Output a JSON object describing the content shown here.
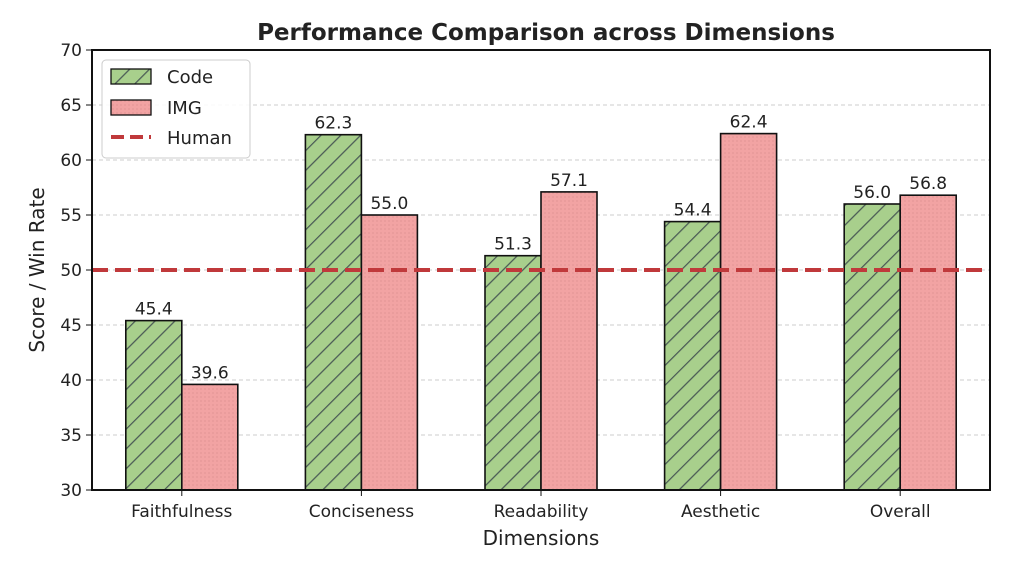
{
  "chart_data": {
    "type": "bar",
    "title": "Performance Comparison across Dimensions",
    "xlabel": "Dimensions",
    "ylabel": "Score / Win Rate",
    "ylim": [
      30,
      70
    ],
    "yticks": [
      30,
      35,
      40,
      45,
      50,
      55,
      60,
      65,
      70
    ],
    "grid": true,
    "legend_position": "top-left",
    "categories": [
      "Faithfulness",
      "Conciseness",
      "Readability",
      "Aesthetic",
      "Overall"
    ],
    "series": [
      {
        "name": "Code",
        "values": [
          45.4,
          62.3,
          51.3,
          54.4,
          56.0
        ],
        "labels": [
          "45.4",
          "62.3",
          "51.3",
          "54.4",
          "56.0"
        ],
        "color": "#a8cf8c",
        "pattern": "hatch"
      },
      {
        "name": "IMG",
        "values": [
          39.6,
          55.0,
          57.1,
          62.4,
          56.8
        ],
        "labels": [
          "39.6",
          "55.0",
          "57.1",
          "62.4",
          "56.8"
        ],
        "color": "#f2a3a3",
        "pattern": "dots"
      }
    ],
    "reference_line": {
      "name": "Human",
      "value": 50,
      "color": "#c0393b"
    }
  }
}
